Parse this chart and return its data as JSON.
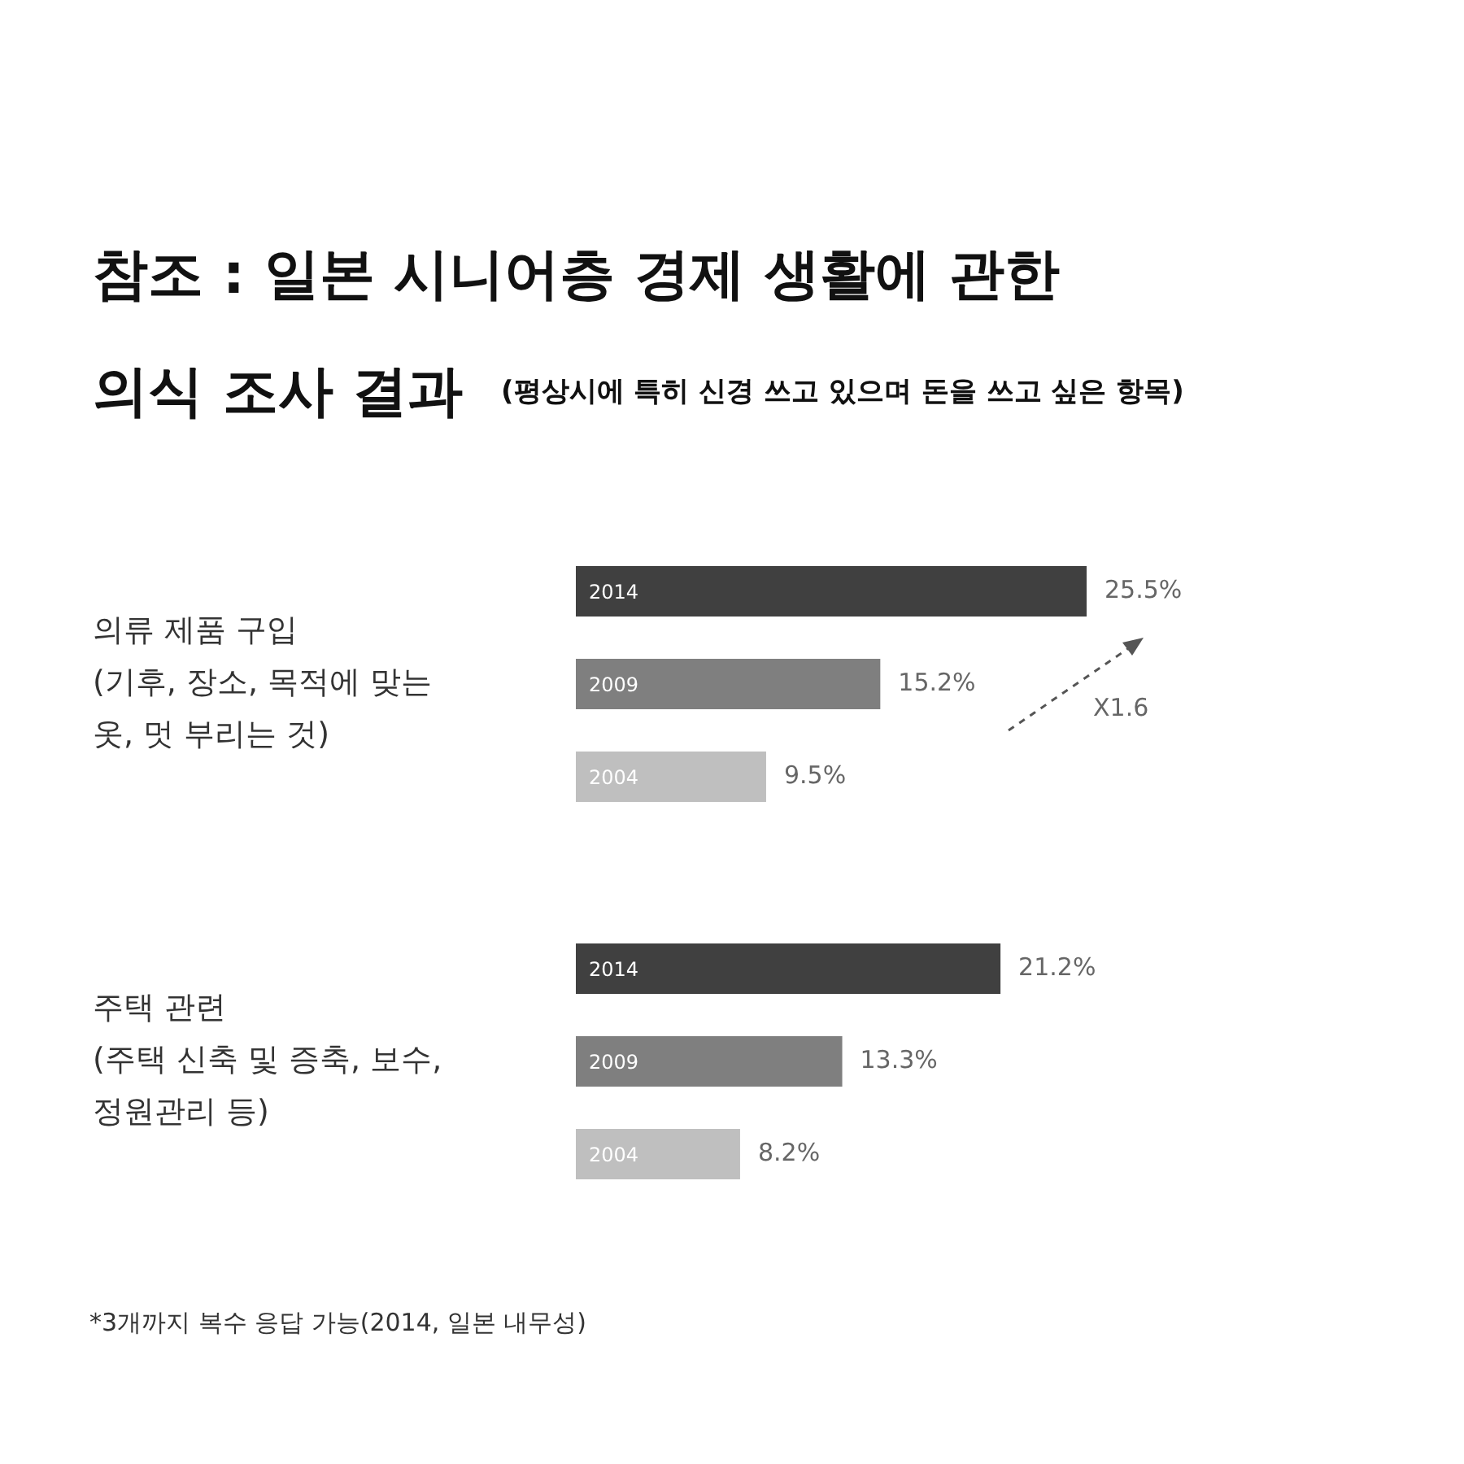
{
  "chart_data": {
    "type": "bar",
    "orientation": "horizontal",
    "title": "참조 : 일본 시니어층 경제 생활에 관한\n의식 조사 결과",
    "subtitle": "(평상시에 특히 신경 쓰고 있으며 돈을 쓰고 싶은 항목)",
    "categories": [
      "의류 제품 구입\n(기후, 장소, 목적에 맞는\n옷, 멋 부리는 것)",
      "주택 관련\n(주택 신축 및 증축, 보수,\n정원관리 등)"
    ],
    "series": [
      {
        "name": "2014",
        "color": "#404040",
        "values": [
          25.5,
          21.2
        ],
        "value_labels": [
          "25.5%",
          "21.2%"
        ]
      },
      {
        "name": "2009",
        "color": "#7f7f7f",
        "values": [
          15.2,
          13.3
        ],
        "value_labels": [
          "15.2%",
          "13.3%"
        ]
      },
      {
        "name": "2004",
        "color": "#bfbfbf",
        "values": [
          9.5,
          8.2
        ],
        "value_labels": [
          "9.5%",
          "8.2%"
        ]
      }
    ],
    "annotations": [
      "X1.6",
      "*3개까지 복수 응답 가능(2014, 일본 내무성)"
    ]
  }
}
